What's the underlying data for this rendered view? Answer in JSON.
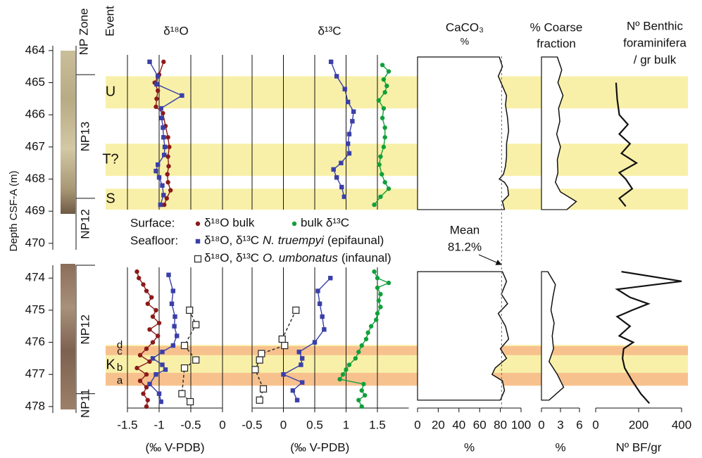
{
  "depth_axis": {
    "label": "Depth CSF-A (m)",
    "sections": [
      {
        "ylim": [
          463.85,
          470.2
        ],
        "yticks": [
          464,
          465,
          466,
          467,
          468,
          469,
          470
        ]
      },
      {
        "ylim": [
          473.6,
          478.2
        ],
        "yticks": [
          474,
          475,
          476,
          477,
          478
        ]
      }
    ]
  },
  "zones": {
    "title": "NP Zone",
    "sections": [
      [
        {
          "label": "NP13",
          "top": 464.75,
          "bottom": 468.6
        },
        {
          "label": "NP12",
          "top": 468.6,
          "bottom": 470.2
        }
      ],
      [
        {
          "label": "NP12",
          "top": 473.6,
          "bottom": 477.6
        },
        {
          "label": "NP11",
          "top": 477.6,
          "bottom": 478.2
        }
      ]
    ]
  },
  "events": {
    "title": "Event",
    "sections": [
      [
        {
          "label": "U",
          "top": 464.8,
          "bottom": 465.8,
          "color": "#f8f0a8"
        },
        {
          "label": "T?",
          "top": 466.9,
          "bottom": 467.9,
          "color": "#f8f0a8"
        },
        {
          "label": "S",
          "top": 468.3,
          "bottom": 468.95,
          "color": "#f8f0a8"
        }
      ],
      [
        {
          "label": "K",
          "top": 476.08,
          "bottom": 477.35,
          "color": "#f8f0a8"
        }
      ]
    ],
    "sub_bands": [
      {
        "top": 476.12,
        "bottom": 476.4,
        "color": "#f7b98a"
      },
      {
        "top": 476.95,
        "bottom": 477.35,
        "color": "#f7b98a"
      }
    ],
    "sub_labels": [
      {
        "label": "d",
        "depth": 476.1
      },
      {
        "label": "c",
        "depth": 476.3
      },
      {
        "label": "b",
        "depth": 476.8
      },
      {
        "label": "a",
        "depth": 477.2
      }
    ]
  },
  "legend": {
    "groups": [
      {
        "title": "Surface:",
        "entries": [
          {
            "marker": "circle",
            "color": "#8b1a1a",
            "label": "δ¹⁸O bulk"
          },
          {
            "marker": "circle",
            "color": "#11a03a",
            "label": "bulk δ¹³C"
          }
        ]
      },
      {
        "title": "Seafloor:",
        "entries": [
          {
            "marker": "square",
            "color": "#3a3fa8",
            "label": "δ¹⁸O, δ¹³C",
            "species": "N. truempyi",
            "note": "(epifaunal)"
          }
        ]
      },
      {
        "title": null,
        "entries": [
          {
            "marker": "open-square",
            "color": "#222222",
            "label": "δ¹⁸O, δ¹³C",
            "species": "O. umbonatus",
            "note": "(infaunal)"
          }
        ]
      }
    ]
  },
  "mean": {
    "label": "Mean",
    "value": 81.2,
    "value_label": "81.2%"
  },
  "chart_data": [
    {
      "type": "profile",
      "title": "δ¹⁸O",
      "xlabel": "(‰ V-PDB)",
      "xlim": [
        -1.5,
        0
      ],
      "xticks": [
        -1.5,
        -1,
        -0.5,
        0
      ],
      "grid": true,
      "series": [
        {
          "color": "#8b1a1a",
          "marker": "circle",
          "sections": [
            {
              "depth": [
                464.35,
                464.75,
                465.0,
                465.25,
                465.5,
                465.75,
                465.95,
                466.35,
                466.7,
                467.0,
                467.3,
                467.6,
                467.85,
                468.1,
                468.35,
                468.6,
                468.8
              ],
              "values": [
                -0.93,
                -1.0,
                -1.07,
                -1.02,
                -1.04,
                -1.05,
                -0.94,
                -0.9,
                -0.86,
                -0.84,
                -0.86,
                -0.85,
                -0.87,
                -0.86,
                -0.82,
                -0.88,
                -0.92
              ]
            },
            {
              "depth": [
                473.8,
                474.0,
                474.2,
                474.4,
                474.6,
                474.8,
                475.0,
                475.2,
                475.4,
                475.6,
                475.8,
                476.0,
                476.2,
                476.4,
                476.6,
                476.8,
                477.0,
                477.2,
                477.4,
                477.6,
                477.8,
                478.0
              ],
              "values": [
                -1.35,
                -1.32,
                -1.25,
                -1.2,
                -1.12,
                -1.18,
                -1.05,
                -1.1,
                -1.0,
                -1.15,
                -1.02,
                -1.1,
                -1.2,
                -1.3,
                -1.15,
                -1.35,
                -1.2,
                -1.3,
                -1.2,
                -1.25,
                -1.18,
                -1.2
              ]
            }
          ]
        },
        {
          "color": "#3a3fa8",
          "marker": "square",
          "sections": [
            {
              "depth": [
                464.35,
                464.8,
                465.05,
                465.4,
                465.8,
                466.1,
                466.4,
                466.7,
                467.0,
                467.25,
                467.55,
                467.75,
                467.95,
                468.2,
                468.5,
                468.8
              ],
              "values": [
                -1.15,
                -1.02,
                -1.04,
                -0.64,
                -0.97,
                -0.96,
                -0.94,
                -0.93,
                -0.91,
                -0.92,
                -1.02,
                -1.05,
                -1.0,
                -0.95,
                -0.93,
                -0.98
              ]
            },
            {
              "depth": [
                473.9,
                474.4,
                474.8,
                475.2,
                475.5,
                475.8,
                476.1,
                476.3,
                476.5,
                476.7,
                476.85,
                477.0,
                477.3,
                477.6,
                477.85
              ],
              "values": [
                -0.85,
                -0.78,
                -0.8,
                -0.75,
                -0.76,
                -0.72,
                -0.78,
                -0.95,
                -1.1,
                -0.95,
                -0.9,
                -1.05,
                -1.15,
                -1.0,
                -0.97
              ]
            }
          ]
        },
        {
          "color": "#222222",
          "marker": "open-square",
          "dashed": true,
          "sections": [
            null,
            {
              "depth": [
                475.0,
                475.45,
                476.1,
                476.55,
                476.8,
                477.6,
                477.85
              ],
              "values": [
                -0.52,
                -0.42,
                -0.6,
                -0.42,
                -0.6,
                -0.64,
                -0.51
              ]
            }
          ]
        }
      ]
    },
    {
      "type": "profile",
      "title": "δ¹³C",
      "xlabel": "(‰ V-PDB)",
      "xlim": [
        -0.5,
        2
      ],
      "xticks": [
        -0.5,
        0,
        0.5,
        1,
        1.5
      ],
      "grid": true,
      "series": [
        {
          "color": "#3a3fa8",
          "marker": "square",
          "sections": [
            {
              "depth": [
                464.35,
                464.8,
                465.2,
                465.6,
                465.9,
                466.2,
                466.6,
                466.9,
                467.2,
                467.5,
                467.7,
                467.95,
                468.25,
                468.55
              ],
              "values": [
                0.76,
                0.85,
                0.98,
                1.03,
                1.12,
                1.1,
                1.05,
                1.03,
                1.05,
                0.92,
                0.8,
                0.85,
                0.93,
                0.97
              ]
            },
            {
              "depth": [
                474.0,
                474.4,
                474.8,
                475.2,
                475.6,
                476.0,
                476.3,
                476.5,
                476.7,
                477.0,
                477.25,
                477.5,
                477.8
              ],
              "values": [
                0.75,
                0.55,
                0.58,
                0.62,
                0.65,
                0.5,
                0.25,
                0.3,
                0.28,
                0.0,
                0.3,
                0.15,
                0.22
              ]
            }
          ]
        },
        {
          "color": "#11a03a",
          "marker": "circle",
          "sections": [
            {
              "depth": [
                464.45,
                464.65,
                464.9,
                465.1,
                465.3,
                465.55,
                465.8,
                466.1,
                466.4,
                466.7,
                467.0,
                467.3,
                467.55,
                467.85,
                468.1,
                468.3,
                468.55,
                468.8
              ],
              "values": [
                1.58,
                1.68,
                1.6,
                1.65,
                1.62,
                1.52,
                1.6,
                1.58,
                1.62,
                1.62,
                1.6,
                1.55,
                1.53,
                1.57,
                1.62,
                1.68,
                1.55,
                1.45
              ]
            },
            {
              "depth": [
                473.8,
                474.0,
                474.15,
                474.3,
                474.5,
                474.7,
                474.9,
                475.1,
                475.3,
                475.5,
                475.7,
                475.9,
                476.1,
                476.3,
                476.5,
                476.7,
                476.85,
                477.0,
                477.15,
                477.3,
                477.5,
                477.65,
                477.8,
                478.0
              ],
              "values": [
                1.45,
                1.5,
                1.68,
                1.5,
                1.55,
                1.52,
                1.55,
                1.5,
                1.48,
                1.4,
                1.35,
                1.32,
                1.25,
                1.2,
                1.15,
                1.05,
                1.0,
                0.95,
                0.9,
                1.28,
                1.25,
                1.3,
                1.2,
                1.25
              ]
            }
          ]
        },
        {
          "color": "#222222",
          "marker": "open-square",
          "dashed": true,
          "sections": [
            null,
            {
              "depth": [
                475.0,
                475.9,
                476.1,
                476.35,
                476.55,
                476.85,
                477.45,
                477.8
              ],
              "values": [
                0.2,
                -0.02,
                0.02,
                -0.35,
                -0.38,
                -0.45,
                -0.32,
                -0.38
              ]
            }
          ]
        }
      ]
    },
    {
      "type": "profile",
      "title": "CaCO₃",
      "subtitle": "%",
      "xlabel": "%",
      "xlim": [
        0,
        100
      ],
      "xticks": [
        0,
        20,
        40,
        60,
        80,
        100
      ],
      "grid": false,
      "series": [
        {
          "color": "#111111",
          "fill": true,
          "sections": [
            {
              "depth": [
                464.2,
                464.5,
                464.8,
                465.1,
                465.4,
                465.7,
                466.1,
                466.5,
                466.9,
                467.3,
                467.6,
                467.85,
                468.0,
                468.1,
                468.25,
                468.5,
                468.7,
                468.95
              ],
              "values": [
                79,
                82,
                78,
                82,
                86,
                85,
                87,
                88,
                86,
                86,
                85,
                83,
                79,
                84,
                87,
                88,
                82,
                84
              ]
            },
            {
              "depth": [
                473.8,
                474.1,
                474.5,
                474.8,
                475.1,
                475.5,
                475.9,
                476.2,
                476.5,
                476.8,
                477.0,
                477.2,
                477.5,
                477.8
              ],
              "values": [
                82,
                86,
                81,
                87,
                78,
                85,
                88,
                80,
                86,
                75,
                72,
                82,
                84,
                80
              ]
            }
          ]
        }
      ]
    },
    {
      "type": "profile",
      "title": "% Coarse",
      "subtitle": "fraction",
      "xlabel": "%",
      "xlim": [
        0,
        6
      ],
      "xticks": [
        0,
        3,
        6
      ],
      "grid": false,
      "series": [
        {
          "color": "#111111",
          "fill": true,
          "sections": [
            {
              "depth": [
                464.2,
                464.6,
                465.0,
                465.4,
                465.8,
                466.2,
                466.6,
                467.0,
                467.4,
                467.8,
                468.1,
                468.4,
                468.7,
                468.95
              ],
              "values": [
                2.5,
                3.2,
                2.6,
                3.4,
                2.7,
                2.9,
                2.4,
                3.0,
                2.5,
                2.6,
                2.2,
                3.0,
                5.5,
                4.0
              ]
            },
            {
              "depth": [
                473.8,
                474.2,
                474.6,
                475.0,
                475.4,
                475.8,
                476.2,
                476.6,
                477.0,
                477.4,
                477.8
              ],
              "values": [
                1.0,
                2.2,
                1.8,
                1.5,
                2.0,
                1.7,
                1.9,
                1.2,
                2.5,
                3.5,
                1.2
              ]
            }
          ]
        }
      ]
    },
    {
      "type": "profile",
      "title": "Nº Benthic",
      "subtitle": "foraminifera",
      "subtitle2": "/ gr bulk",
      "xlabel": "Nº BF/gr",
      "xlim": [
        0,
        400
      ],
      "xticks": [
        0,
        200,
        400
      ],
      "grid": false,
      "series": [
        {
          "color": "#111111",
          "width": 2.2,
          "sections": [
            {
              "depth": [
                465.0,
                465.5,
                466.0,
                466.3,
                466.6,
                466.9,
                467.2,
                467.5,
                467.8,
                468.0,
                468.3,
                468.6,
                468.85
              ],
              "values": [
                95,
                100,
                110,
                150,
                110,
                160,
                120,
                190,
                110,
                140,
                170,
                110,
                140
              ]
            },
            {
              "depth": [
                473.8,
                474.1,
                474.35,
                474.6,
                474.8,
                475.0,
                475.2,
                475.5,
                475.8,
                476.0,
                476.2,
                476.5,
                476.8,
                477.2,
                477.6,
                477.9
              ],
              "values": [
                120,
                400,
                100,
                160,
                245,
                170,
                100,
                160,
                110,
                175,
                130,
                125,
                135,
                170,
                210,
                250
              ]
            }
          ]
        }
      ]
    }
  ]
}
